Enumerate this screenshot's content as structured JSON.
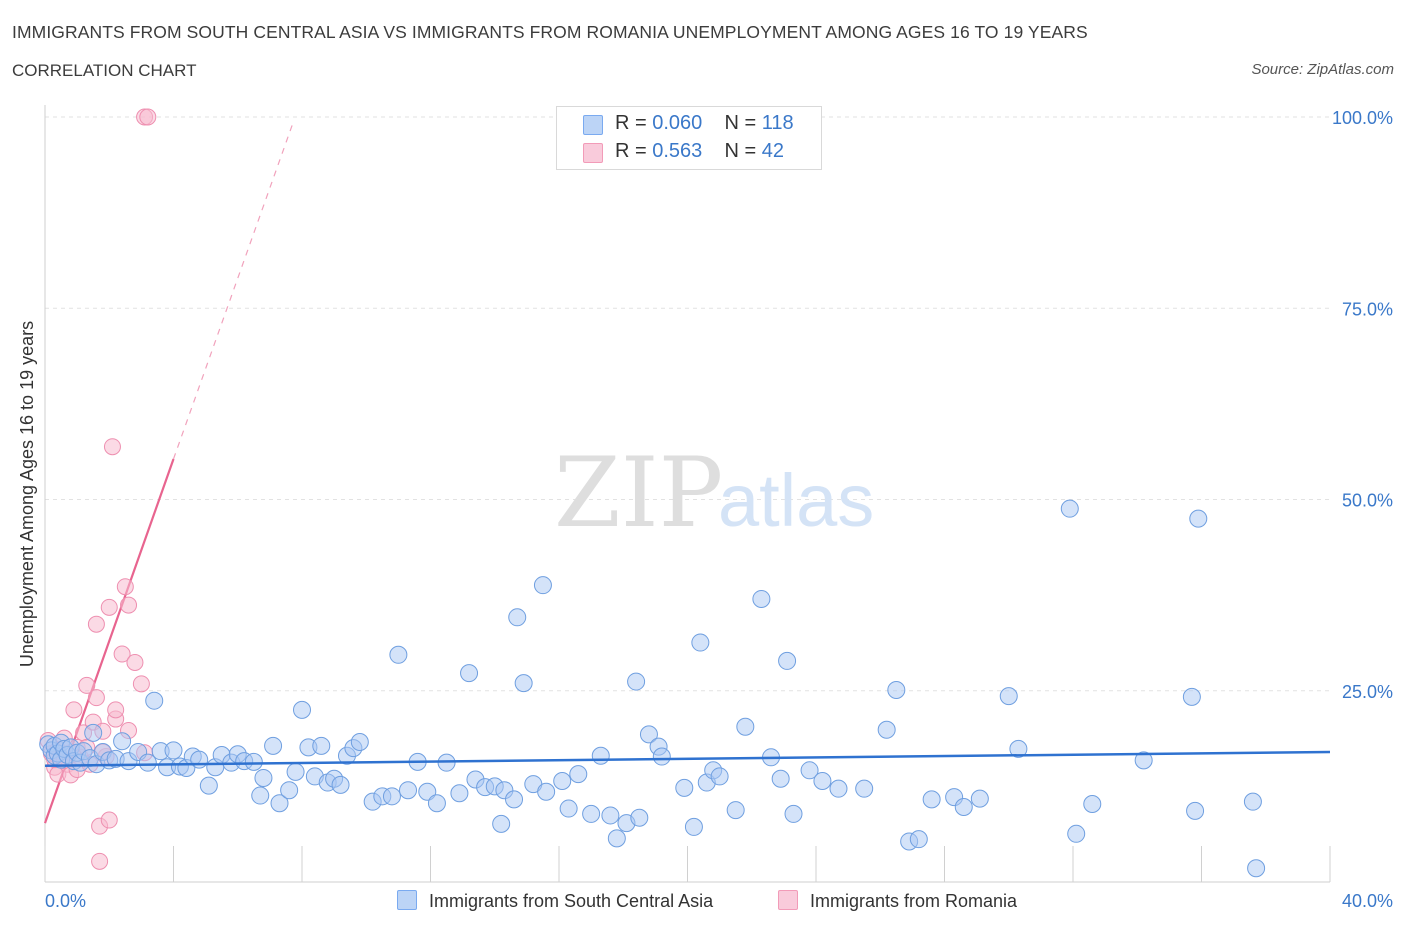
{
  "header": {
    "title": "IMMIGRANTS FROM SOUTH CENTRAL ASIA VS IMMIGRANTS FROM ROMANIA UNEMPLOYMENT AMONG AGES 16 TO 19 YEARS",
    "subtitle": "CORRELATION CHART",
    "source": "Source: ZipAtlas.com"
  },
  "watermark": {
    "zip": "ZIP",
    "atlas": "atlas"
  },
  "legend": {
    "rows": [
      {
        "r_label": "R =",
        "r_value": "0.060",
        "n_label": "N =",
        "n_value": "118",
        "color": "#7aaaf0"
      },
      {
        "r_label": "R =",
        "r_value": "0.563",
        "n_label": "N =",
        "n_value": "42",
        "color": "#f29bb8"
      }
    ]
  },
  "colors": {
    "blue_fill": "#a9c8f3",
    "blue_stroke": "#6f9fe0",
    "blue_line": "#2f72d0",
    "pink_fill": "#f7bcd0",
    "pink_stroke": "#ee8fb0",
    "pink_line": "#e8648f",
    "grid": "#e2e2e2",
    "axis_label": "#3a78c9"
  },
  "chart_data": {
    "type": "scatter",
    "title": "IMMIGRANTS FROM SOUTH CENTRAL ASIA VS IMMIGRANTS FROM ROMANIA UNEMPLOYMENT AMONG AGES 16 TO 19 YEARS",
    "ylabel": "Unemployment Among Ages 16 to 19 years",
    "xlabel": "",
    "xlim": [
      0,
      40
    ],
    "ylim": [
      0,
      100
    ],
    "x_tick_labels": [
      "0.0%",
      "40.0%"
    ],
    "y_tick_labels": [
      "100.0%",
      "75.0%",
      "50.0%",
      "25.0%"
    ],
    "y_ticks": [
      100,
      75,
      50,
      25
    ],
    "grid": true,
    "legend_position": "top-center",
    "series": [
      {
        "name": "Immigrants from South Central Asia",
        "color": "#7aaaf0",
        "trend": {
          "x": [
            0,
            40
          ],
          "y": [
            15.2,
            17.0
          ]
        },
        "points": [
          [
            0.1,
            18.0
          ],
          [
            0.2,
            17.2
          ],
          [
            0.3,
            16.5
          ],
          [
            0.3,
            17.8
          ],
          [
            0.4,
            16.8
          ],
          [
            0.5,
            18.2
          ],
          [
            0.5,
            16.0
          ],
          [
            0.6,
            17.4
          ],
          [
            0.7,
            16.6
          ],
          [
            0.8,
            17.6
          ],
          [
            0.9,
            15.8
          ],
          [
            1.0,
            16.9
          ],
          [
            1.1,
            15.6
          ],
          [
            1.2,
            17.1
          ],
          [
            1.4,
            16.2
          ],
          [
            1.5,
            19.5
          ],
          [
            1.6,
            15.4
          ],
          [
            1.8,
            17.0
          ],
          [
            2.0,
            15.9
          ],
          [
            2.2,
            16.1
          ],
          [
            2.4,
            18.4
          ],
          [
            2.6,
            15.8
          ],
          [
            2.9,
            17.0
          ],
          [
            3.2,
            15.6
          ],
          [
            3.4,
            23.7
          ],
          [
            3.6,
            17.1
          ],
          [
            3.8,
            15.0
          ],
          [
            4.0,
            17.2
          ],
          [
            4.2,
            15.1
          ],
          [
            4.4,
            14.9
          ],
          [
            4.6,
            16.4
          ],
          [
            4.8,
            16.0
          ],
          [
            5.1,
            12.6
          ],
          [
            5.3,
            15.0
          ],
          [
            5.5,
            16.6
          ],
          [
            5.8,
            15.6
          ],
          [
            6.0,
            16.7
          ],
          [
            6.2,
            15.8
          ],
          [
            6.5,
            15.7
          ],
          [
            6.8,
            13.6
          ],
          [
            6.7,
            11.3
          ],
          [
            7.1,
            17.8
          ],
          [
            7.3,
            10.3
          ],
          [
            7.6,
            12.0
          ],
          [
            7.8,
            14.4
          ],
          [
            8.0,
            22.5
          ],
          [
            8.2,
            17.6
          ],
          [
            8.4,
            13.8
          ],
          [
            8.6,
            17.8
          ],
          [
            8.8,
            13.0
          ],
          [
            9.0,
            13.5
          ],
          [
            9.2,
            12.7
          ],
          [
            9.4,
            16.5
          ],
          [
            9.6,
            17.5
          ],
          [
            9.8,
            18.3
          ],
          [
            10.2,
            10.5
          ],
          [
            10.5,
            11.2
          ],
          [
            10.8,
            11.2
          ],
          [
            11.0,
            29.7
          ],
          [
            11.3,
            12.0
          ],
          [
            11.6,
            15.7
          ],
          [
            11.9,
            11.8
          ],
          [
            12.2,
            10.3
          ],
          [
            12.5,
            15.6
          ],
          [
            12.9,
            11.6
          ],
          [
            13.2,
            27.3
          ],
          [
            13.4,
            13.4
          ],
          [
            13.7,
            12.4
          ],
          [
            14.0,
            12.5
          ],
          [
            14.3,
            12.0
          ],
          [
            14.2,
            7.6
          ],
          [
            14.6,
            10.8
          ],
          [
            14.7,
            34.6
          ],
          [
            14.9,
            26.0
          ],
          [
            15.2,
            12.8
          ],
          [
            15.5,
            38.8
          ],
          [
            15.6,
            11.8
          ],
          [
            16.1,
            13.2
          ],
          [
            16.3,
            9.6
          ],
          [
            16.6,
            14.1
          ],
          [
            17.0,
            8.9
          ],
          [
            17.3,
            16.5
          ],
          [
            17.6,
            8.7
          ],
          [
            17.8,
            5.7
          ],
          [
            18.1,
            7.7
          ],
          [
            18.4,
            26.2
          ],
          [
            18.5,
            8.4
          ],
          [
            18.8,
            19.3
          ],
          [
            19.1,
            17.7
          ],
          [
            19.2,
            16.4
          ],
          [
            19.9,
            12.3
          ],
          [
            20.2,
            7.2
          ],
          [
            20.4,
            31.3
          ],
          [
            20.6,
            13.0
          ],
          [
            20.8,
            14.6
          ],
          [
            21.0,
            13.8
          ],
          [
            21.5,
            9.4
          ],
          [
            21.8,
            20.3
          ],
          [
            22.3,
            37.0
          ],
          [
            22.6,
            16.3
          ],
          [
            22.9,
            13.5
          ],
          [
            23.1,
            28.9
          ],
          [
            23.3,
            8.9
          ],
          [
            23.8,
            14.6
          ],
          [
            24.2,
            13.2
          ],
          [
            24.7,
            12.2
          ],
          [
            25.5,
            12.2
          ],
          [
            26.2,
            19.9
          ],
          [
            26.5,
            25.1
          ],
          [
            26.9,
            5.3
          ],
          [
            27.2,
            5.6
          ],
          [
            27.6,
            10.8
          ],
          [
            28.3,
            11.1
          ],
          [
            28.6,
            9.8
          ],
          [
            29.1,
            10.9
          ],
          [
            30.0,
            24.3
          ],
          [
            30.3,
            17.4
          ],
          [
            32.1,
            6.3
          ],
          [
            32.6,
            10.2
          ],
          [
            34.2,
            15.9
          ],
          [
            35.8,
            9.3
          ],
          [
            31.9,
            48.8
          ],
          [
            35.9,
            47.5
          ],
          [
            35.7,
            24.2
          ],
          [
            37.6,
            10.5
          ],
          [
            37.7,
            1.8
          ]
        ]
      },
      {
        "name": "Immigrants from Romania",
        "color": "#f29bb8",
        "trend_solid": {
          "x": [
            0,
            4.0
          ],
          "y": [
            7.7,
            55.3
          ]
        },
        "trend_dashed": {
          "x": [
            4.0,
            7.7
          ],
          "y": [
            55.3,
            99.0
          ]
        },
        "points": [
          [
            0.1,
            18.5
          ],
          [
            0.2,
            16.8
          ],
          [
            0.3,
            15.0
          ],
          [
            0.4,
            17.3
          ],
          [
            0.4,
            14.1
          ],
          [
            0.5,
            16.1
          ],
          [
            0.6,
            18.8
          ],
          [
            0.7,
            15.4
          ],
          [
            0.8,
            16.9
          ],
          [
            0.8,
            14.0
          ],
          [
            0.9,
            22.5
          ],
          [
            1.0,
            17.6
          ],
          [
            1.0,
            14.7
          ],
          [
            1.1,
            16.3
          ],
          [
            1.2,
            19.5
          ],
          [
            1.3,
            25.7
          ],
          [
            1.3,
            17.6
          ],
          [
            1.4,
            15.4
          ],
          [
            1.5,
            20.9
          ],
          [
            1.6,
            24.1
          ],
          [
            1.6,
            33.7
          ],
          [
            1.7,
            7.3
          ],
          [
            1.7,
            2.7
          ],
          [
            1.8,
            19.7
          ],
          [
            1.9,
            16.4
          ],
          [
            2.0,
            35.9
          ],
          [
            2.0,
            8.1
          ],
          [
            2.1,
            56.9
          ],
          [
            2.2,
            21.3
          ],
          [
            2.2,
            22.5
          ],
          [
            2.4,
            29.8
          ],
          [
            2.5,
            38.6
          ],
          [
            2.6,
            36.2
          ],
          [
            2.6,
            19.8
          ],
          [
            2.8,
            28.7
          ],
          [
            3.0,
            25.9
          ],
          [
            3.1,
            16.9
          ],
          [
            3.1,
            100.0
          ],
          [
            3.2,
            100.0
          ],
          [
            0.3,
            16.0
          ],
          [
            0.6,
            15.9
          ],
          [
            1.8,
            17.0
          ]
        ]
      }
    ]
  },
  "bottom_legend": {
    "items": [
      {
        "label": "Immigrants from South Central Asia"
      },
      {
        "label": "Immigrants from Romania"
      }
    ]
  }
}
